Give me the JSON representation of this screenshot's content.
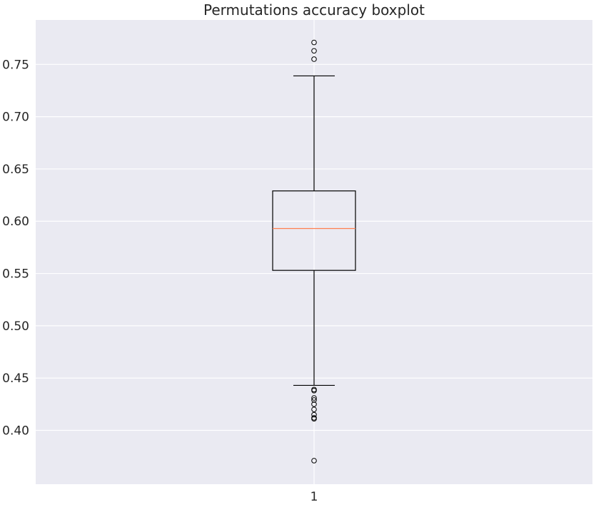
{
  "chart_data": {
    "type": "boxplot",
    "title": "Permutations accuracy boxplot",
    "xlabel": "",
    "ylabel": "",
    "categories": [
      "1"
    ],
    "ylim": [
      0.3485,
      0.7925
    ],
    "yticks": [
      0.4,
      0.45,
      0.5,
      0.55,
      0.6,
      0.65,
      0.7,
      0.75
    ],
    "ytick_labels": [
      "0.40",
      "0.45",
      "0.50",
      "0.55",
      "0.60",
      "0.65",
      "0.70",
      "0.75"
    ],
    "grid": true,
    "box": {
      "q1": 0.553,
      "median": 0.593,
      "q3": 0.629,
      "whisker_low": 0.443,
      "whisker_high": 0.739
    },
    "outliers": [
      0.771,
      0.763,
      0.755,
      0.439,
      0.438,
      0.431,
      0.429,
      0.425,
      0.42,
      0.415,
      0.412,
      0.411,
      0.371
    ],
    "colors": {
      "background": "#eaeaf2",
      "grid": "#ffffff",
      "box": "#000000",
      "median": "#ff7f50",
      "text": "#262626"
    }
  }
}
